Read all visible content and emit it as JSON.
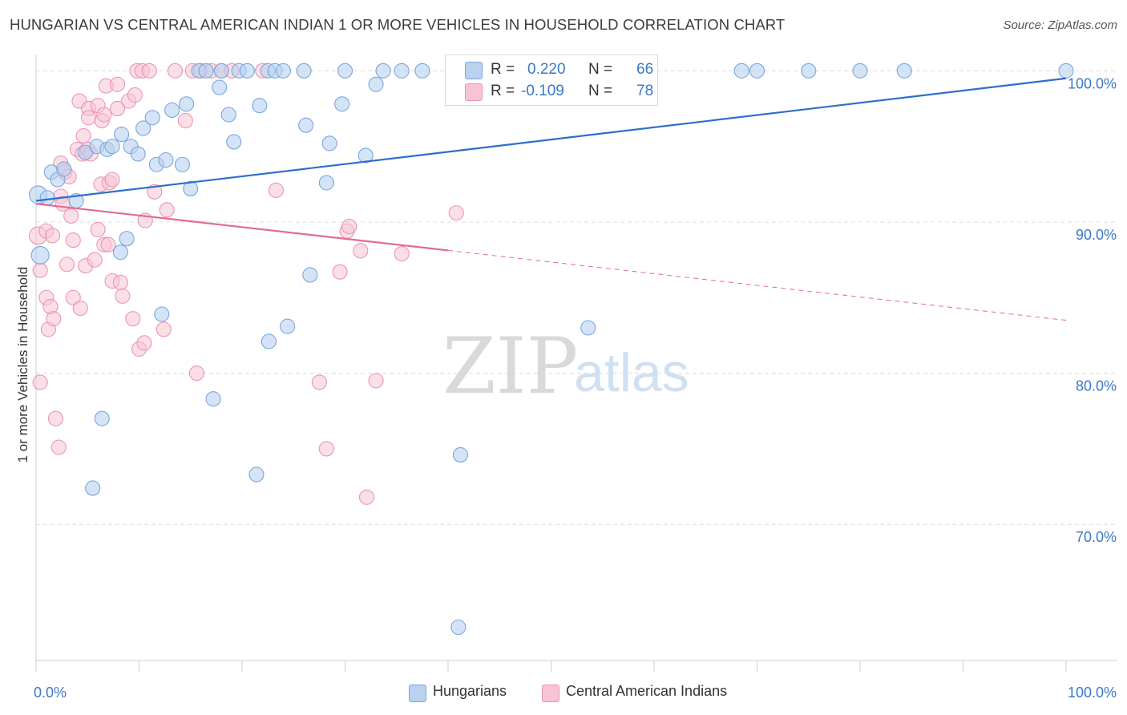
{
  "title": "HUNGARIAN VS CENTRAL AMERICAN INDIAN 1 OR MORE VEHICLES IN HOUSEHOLD CORRELATION CHART",
  "source": "Source: ZipAtlas.com",
  "watermark": {
    "zip": "ZIP",
    "atlas": "atlas"
  },
  "legend": {
    "rows": [
      {
        "r_label": "R =",
        "r_value": "0.220",
        "n_label": "N =",
        "n_value": "66"
      },
      {
        "r_label": "R =",
        "r_value": "-0.109",
        "n_label": "N =",
        "n_value": "78"
      }
    ]
  },
  "colors": {
    "blue_fill": "#b8d2f0",
    "blue_stroke": "#7aa6dd",
    "blue_line": "#2c6fcb",
    "pink_fill": "#f8c4d4",
    "pink_stroke": "#eb94b2",
    "pink_line": "#e26a96",
    "axis_text": "#3a78c8",
    "grid": "#dcdcdc"
  },
  "chart_data": {
    "type": "scatter",
    "title": "HUNGARIAN VS CENTRAL AMERICAN INDIAN 1 OR MORE VEHICLES IN HOUSEHOLD CORRELATION CHART",
    "xlabel": "",
    "ylabel": "1 or more Vehicles in Household",
    "xlim": [
      0,
      100
    ],
    "ylim": [
      61.0,
      101.5
    ],
    "x_ticks": [
      0,
      10,
      20,
      30,
      40,
      50,
      60,
      70,
      80,
      90,
      100
    ],
    "x_tick_labels": [
      {
        "x": 0,
        "label": "0.0%"
      },
      {
        "x": 100,
        "label": "100.0%"
      }
    ],
    "y_ticks": [
      {
        "y": 70,
        "label": "70.0%"
      },
      {
        "y": 80,
        "label": "80.0%"
      },
      {
        "y": 90,
        "label": "90.0%"
      },
      {
        "y": 100,
        "label": "100.0%"
      }
    ],
    "grid": true,
    "legend_position": "top-center",
    "series": [
      {
        "name": "Hungarians",
        "color": "#7aa6dd",
        "r": 0.22,
        "n": 66,
        "trend": {
          "x": [
            0,
            100
          ],
          "y": [
            91.4,
            99.5
          ],
          "solid_to": 100
        },
        "points": [
          [
            0.2,
            91.8
          ],
          [
            0.4,
            87.8
          ],
          [
            1.1,
            91.6
          ],
          [
            1.5,
            93.3
          ],
          [
            2.1,
            92.8
          ],
          [
            2.7,
            93.5
          ],
          [
            3.9,
            91.4
          ],
          [
            4.8,
            94.6
          ],
          [
            5.5,
            72.4
          ],
          [
            5.9,
            95.0
          ],
          [
            6.4,
            77.0
          ],
          [
            6.9,
            94.8
          ],
          [
            7.4,
            95.0
          ],
          [
            8.2,
            88.0
          ],
          [
            8.3,
            95.8
          ],
          [
            8.8,
            88.9
          ],
          [
            9.2,
            95.0
          ],
          [
            9.9,
            94.5
          ],
          [
            10.4,
            96.2
          ],
          [
            11.3,
            96.9
          ],
          [
            11.7,
            93.8
          ],
          [
            12.2,
            83.9
          ],
          [
            12.6,
            94.1
          ],
          [
            13.2,
            97.4
          ],
          [
            14.2,
            93.8
          ],
          [
            14.6,
            97.8
          ],
          [
            15.0,
            92.2
          ],
          [
            15.8,
            100.0
          ],
          [
            16.5,
            100.0
          ],
          [
            17.2,
            78.3
          ],
          [
            18.0,
            100.0
          ],
          [
            17.8,
            98.9
          ],
          [
            18.7,
            97.1
          ],
          [
            19.2,
            95.3
          ],
          [
            19.7,
            100.0
          ],
          [
            20.5,
            100.0
          ],
          [
            21.4,
            73.3
          ],
          [
            21.7,
            97.7
          ],
          [
            22.5,
            100.0
          ],
          [
            22.6,
            82.1
          ],
          [
            23.2,
            100.0
          ],
          [
            24.0,
            100.0
          ],
          [
            24.4,
            83.1
          ],
          [
            26.2,
            96.4
          ],
          [
            26.6,
            86.5
          ],
          [
            28.2,
            92.6
          ],
          [
            28.5,
            95.2
          ],
          [
            29.7,
            97.8
          ],
          [
            30.0,
            100.0
          ],
          [
            32.0,
            94.4
          ],
          [
            33.0,
            99.1
          ],
          [
            33.7,
            100.0
          ],
          [
            35.5,
            100.0
          ],
          [
            37.5,
            100.0
          ],
          [
            41.0,
            63.2
          ],
          [
            41.2,
            74.6
          ],
          [
            50.0,
            100.0
          ],
          [
            53.6,
            83.0
          ],
          [
            54.0,
            100.0
          ],
          [
            68.5,
            100.0
          ],
          [
            70.0,
            100.0
          ],
          [
            75.0,
            100.0
          ],
          [
            80.0,
            100.0
          ],
          [
            84.3,
            100.0
          ],
          [
            100.0,
            100.0
          ],
          [
            26.0,
            100.0
          ]
        ]
      },
      {
        "name": "Central American Indians",
        "color": "#eb94b2",
        "r": -0.109,
        "n": 78,
        "trend": {
          "x": [
            0,
            100
          ],
          "y": [
            91.2,
            83.5
          ],
          "solid_to": 40
        }
      }
    ]
  },
  "pink_points": [
    [
      0.2,
      89.1
    ],
    [
      0.4,
      86.8
    ],
    [
      0.4,
      79.4
    ],
    [
      1.0,
      89.4
    ],
    [
      1.0,
      85.0
    ],
    [
      1.2,
      82.9
    ],
    [
      1.4,
      84.4
    ],
    [
      1.6,
      89.1
    ],
    [
      1.7,
      83.6
    ],
    [
      1.9,
      77.0
    ],
    [
      2.2,
      75.1
    ],
    [
      2.4,
      91.7
    ],
    [
      2.4,
      93.9
    ],
    [
      2.6,
      91.2
    ],
    [
      2.8,
      93.3
    ],
    [
      3.0,
      87.2
    ],
    [
      3.2,
      93.0
    ],
    [
      3.4,
      90.4
    ],
    [
      3.6,
      85.0
    ],
    [
      3.6,
      88.8
    ],
    [
      4.0,
      94.8
    ],
    [
      4.2,
      98.0
    ],
    [
      4.3,
      84.3
    ],
    [
      4.5,
      94.5
    ],
    [
      4.6,
      95.7
    ],
    [
      4.8,
      87.1
    ],
    [
      5.0,
      94.8
    ],
    [
      5.1,
      97.5
    ],
    [
      5.3,
      94.5
    ],
    [
      5.1,
      96.9
    ],
    [
      5.7,
      87.5
    ],
    [
      6.0,
      97.7
    ],
    [
      6.0,
      89.5
    ],
    [
      6.3,
      92.5
    ],
    [
      6.4,
      96.7
    ],
    [
      6.6,
      88.5
    ],
    [
      6.6,
      97.1
    ],
    [
      6.8,
      99.0
    ],
    [
      7.0,
      88.5
    ],
    [
      7.1,
      92.6
    ],
    [
      7.4,
      92.8
    ],
    [
      7.4,
      86.1
    ],
    [
      7.9,
      99.1
    ],
    [
      7.9,
      97.5
    ],
    [
      8.2,
      86.0
    ],
    [
      8.4,
      85.1
    ],
    [
      9.0,
      98.0
    ],
    [
      9.4,
      83.6
    ],
    [
      9.6,
      98.4
    ],
    [
      9.8,
      100.0
    ],
    [
      10.0,
      81.6
    ],
    [
      10.3,
      100.0
    ],
    [
      10.5,
      82.0
    ],
    [
      10.6,
      90.1
    ],
    [
      11.0,
      100.0
    ],
    [
      11.5,
      92.0
    ],
    [
      12.4,
      82.9
    ],
    [
      12.7,
      90.8
    ],
    [
      13.5,
      100.0
    ],
    [
      14.5,
      96.7
    ],
    [
      15.2,
      100.0
    ],
    [
      15.6,
      80.0
    ],
    [
      16.0,
      100.0
    ],
    [
      17.0,
      100.0
    ],
    [
      18.0,
      100.0
    ],
    [
      19.0,
      100.0
    ],
    [
      22.0,
      100.0
    ],
    [
      23.3,
      92.1
    ],
    [
      27.5,
      79.4
    ],
    [
      28.2,
      75.0
    ],
    [
      29.5,
      86.7
    ],
    [
      30.2,
      89.4
    ],
    [
      30.4,
      89.7
    ],
    [
      31.5,
      88.1
    ],
    [
      32.1,
      71.8
    ],
    [
      33.0,
      79.5
    ],
    [
      35.5,
      87.9
    ],
    [
      40.8,
      90.6
    ]
  ],
  "bottom_legend": {
    "items": [
      {
        "label": "Hungarians"
      },
      {
        "label": "Central American Indians"
      }
    ]
  }
}
